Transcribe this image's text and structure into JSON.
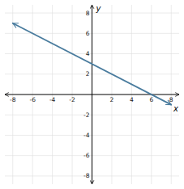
{
  "chart_data": {
    "type": "line",
    "x": [
      -8,
      8
    ],
    "values": [
      7,
      -1
    ],
    "color": "#4a7c9e",
    "marker": "arrow",
    "xlim": [
      -8.8,
      8.8
    ],
    "ylim": [
      -8.8,
      8.8
    ],
    "xticks": [
      -8,
      -6,
      -4,
      -2,
      2,
      4,
      6,
      8
    ],
    "yticks": [
      -8,
      -6,
      -4,
      -2,
      2,
      4,
      6,
      8
    ],
    "xlabel": "x",
    "ylabel": "y",
    "grid": true
  }
}
